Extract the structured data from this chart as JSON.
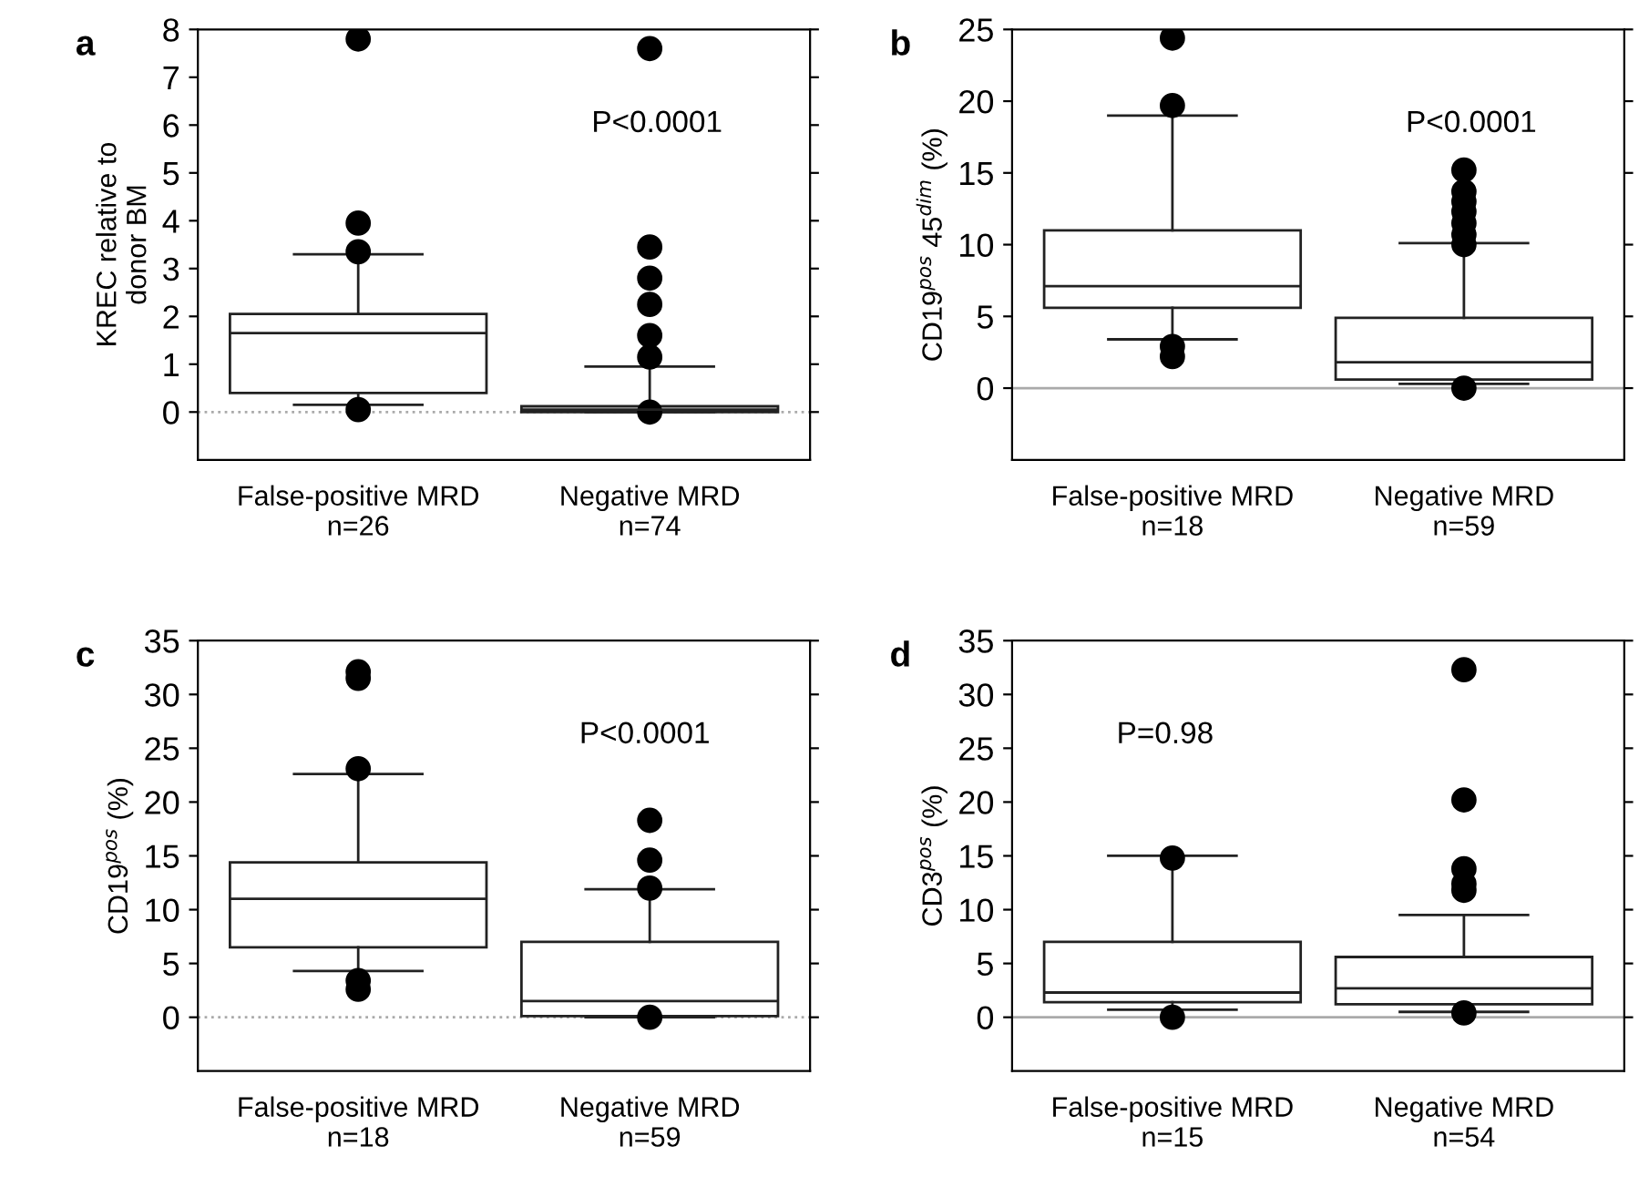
{
  "chart_data": [
    {
      "type": "box",
      "title": "a",
      "ylabel": "KREC relative to\ndonor BM",
      "categories": [
        "False-positive MRD\nn=26",
        "Negative MRD\nn=74"
      ],
      "ylim": [
        -1,
        8
      ],
      "yticks": [
        0,
        1,
        2,
        3,
        4,
        5,
        6,
        7,
        8
      ],
      "annotations": [
        "P<0.0001"
      ],
      "ref_lines": [
        {
          "axis": "y",
          "value": 0,
          "color": "#aaaaaa",
          "line_style": "dotted"
        }
      ],
      "boxes": [
        {
          "low": 0.15,
          "q1": 0.4,
          "median": 1.65,
          "q3": 2.05,
          "high": 3.3,
          "outliers": [
            0.05,
            3.35,
            3.95,
            7.8
          ]
        },
        {
          "low": 0,
          "q1": 0,
          "median": 0.05,
          "q3": 0.12,
          "high": 0.95,
          "outliers": [
            0,
            1.15,
            1.6,
            2.25,
            2.8,
            3.45,
            7.6
          ]
        }
      ]
    },
    {
      "type": "box",
      "title": "b",
      "ylabel": "CD19$^{pos}$ 45$^{dim}$ (%)",
      "categories": [
        "False-positive MRD\nn=18",
        "Negative MRD\nn=59"
      ],
      "ylim": [
        -5,
        25
      ],
      "yticks": [
        0,
        5,
        10,
        15,
        20,
        25
      ],
      "annotations": [
        "P<0.0001"
      ],
      "ref_lines": [
        {
          "axis": "y",
          "value": 0,
          "color": "#aaaaaa",
          "line_style": "solid"
        }
      ],
      "boxes": [
        {
          "low": 3.4,
          "q1": 5.6,
          "median": 7.1,
          "q3": 11.0,
          "high": 19.0,
          "outliers": [
            2.2,
            2.9,
            19.7,
            24.4
          ]
        },
        {
          "low": 0.3,
          "q1": 0.6,
          "median": 1.8,
          "q3": 4.9,
          "high": 10.1,
          "outliers": [
            0,
            10,
            10.7,
            11.5,
            12.3,
            13,
            13.7,
            15.2
          ]
        }
      ]
    },
    {
      "type": "box",
      "title": "c",
      "ylabel": "CD19$^{pos}$ (%)",
      "categories": [
        "False-positive MRD\nn=18",
        "Negative MRD\nn=59"
      ],
      "ylim": [
        -5,
        35
      ],
      "yticks": [
        0,
        5,
        10,
        15,
        20,
        25,
        30,
        35
      ],
      "annotations": [
        "P<0.0001"
      ],
      "ref_lines": [
        {
          "axis": "y",
          "value": 0,
          "color": "#aaaaaa",
          "line_style": "dotted"
        }
      ],
      "boxes": [
        {
          "low": 4.3,
          "q1": 6.5,
          "median": 11,
          "q3": 14.4,
          "high": 22.6,
          "outliers": [
            2.6,
            3.4,
            23.1,
            31.5,
            32.1
          ]
        },
        {
          "low": 0,
          "q1": 0.1,
          "median": 1.5,
          "q3": 7,
          "high": 11.9,
          "outliers": [
            0,
            12.0,
            14.6,
            18.3
          ]
        }
      ]
    },
    {
      "type": "box",
      "title": "d",
      "ylabel": "CD3$^{pos}$ (%)",
      "categories": [
        "False-positive MRD\nn=15",
        "Negative MRD\nn=54"
      ],
      "ylim": [
        -5,
        35
      ],
      "yticks": [
        0,
        5,
        10,
        15,
        20,
        25,
        30,
        35
      ],
      "annotations": [
        "P=0.98"
      ],
      "ref_lines": [
        {
          "axis": "y",
          "value": 0,
          "color": "#aaaaaa",
          "line_style": "solid"
        }
      ],
      "boxes": [
        {
          "low": 0.7,
          "q1": 1.4,
          "median": 2.3,
          "q3": 7.0,
          "high": 15.0,
          "outliers": [
            0,
            14.8
          ]
        },
        {
          "low": 0.5,
          "q1": 1.2,
          "median": 2.7,
          "q3": 5.6,
          "high": 9.5,
          "outliers": [
            0.4,
            11.8,
            12.4,
            13.8,
            20.2,
            32.3
          ]
        }
      ]
    }
  ]
}
